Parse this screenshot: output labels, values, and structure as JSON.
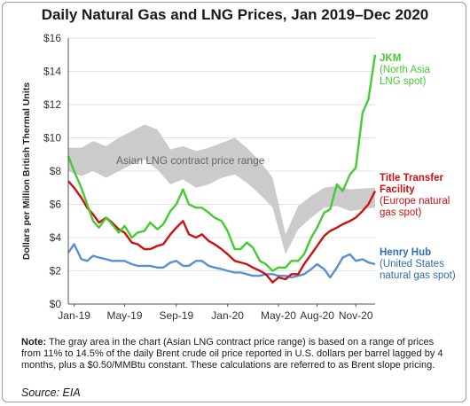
{
  "title": "Daily Natural Gas and LNG Prices, Jan 2019–Dec 2020",
  "note_label": "Note:",
  "note_text": " The gray area in the chart (Asian LNG contract price range) is based on a range of prices from 11% to 14.5% of the daily Brent crude oil price reported in U.S. dollars per barrel lagged by 4 months, plus a $0.50/MMBtu constant. These calculations are referred to as Brent slope pricing.",
  "source": "Source: EIA",
  "colors": {
    "jkm": "#44cc33",
    "ttf": "#cc1111",
    "henry_hub": "#5b8fd4",
    "asian_band": "#c8c8c8",
    "ttf_label": "#222222",
    "henry_label": "#2e6db4"
  },
  "chart_data": {
    "type": "line",
    "ylabel": "Dollars per Million British Thermal Units",
    "ylim": [
      0,
      16
    ],
    "yticks": [
      0,
      2,
      4,
      6,
      8,
      10,
      12,
      14,
      16
    ],
    "ytick_labels": [
      "$0",
      "$2",
      "$4",
      "$6",
      "$8",
      "$10",
      "$12",
      "$14",
      "$16"
    ],
    "xlim": [
      "2019-01-01",
      "2020-12-31"
    ],
    "xticks": [
      "2019-01-15",
      "2019-05-15",
      "2019-09-15",
      "2020-01-15",
      "2020-05-15",
      "2020-08-15",
      "2020-11-15"
    ],
    "xtick_labels": [
      "Jan-19",
      "May-19",
      "Sep-19",
      "Jan-20",
      "May-20",
      "Aug-20",
      "Nov-20"
    ],
    "grid": true,
    "band": {
      "name": "Asian LNG contract price range",
      "x": [
        "2019-01-01",
        "2019-02-01",
        "2019-03-01",
        "2019-04-01",
        "2019-05-01",
        "2019-06-01",
        "2019-07-01",
        "2019-08-01",
        "2019-09-01",
        "2019-10-01",
        "2019-11-01",
        "2019-12-01",
        "2020-01-01",
        "2020-02-01",
        "2020-03-01",
        "2020-04-01",
        "2020-05-01",
        "2020-06-01",
        "2020-07-01",
        "2020-08-01",
        "2020-09-01",
        "2020-10-01",
        "2020-11-01",
        "2020-12-31"
      ],
      "low": [
        8.0,
        7.7,
        8.0,
        7.6,
        8.0,
        8.4,
        8.7,
        8.1,
        7.2,
        7.5,
        7.0,
        7.2,
        7.6,
        7.8,
        7.3,
        6.6,
        5.8,
        3.0,
        4.5,
        5.2,
        5.8,
        5.9,
        5.6,
        5.8
      ],
      "high": [
        9.4,
        9.4,
        9.8,
        9.5,
        10.0,
        10.4,
        10.8,
        10.5,
        9.3,
        9.5,
        9.2,
        9.4,
        9.7,
        10.0,
        9.4,
        8.6,
        7.6,
        4.2,
        5.9,
        6.5,
        7.0,
        7.1,
        6.9,
        7.0
      ]
    },
    "series": [
      {
        "name": "JKM",
        "label_lines": [
          "JKM",
          "(North Asia",
          "LNG spot)"
        ],
        "x": [
          "2019-01-01",
          "2019-01-15",
          "2019-02-01",
          "2019-02-15",
          "2019-03-01",
          "2019-03-15",
          "2019-04-01",
          "2019-04-15",
          "2019-05-01",
          "2019-05-15",
          "2019-06-01",
          "2019-06-15",
          "2019-07-01",
          "2019-07-15",
          "2019-08-01",
          "2019-08-15",
          "2019-09-01",
          "2019-09-15",
          "2019-10-01",
          "2019-10-15",
          "2019-11-01",
          "2019-11-15",
          "2019-12-01",
          "2019-12-15",
          "2020-01-01",
          "2020-01-15",
          "2020-02-01",
          "2020-02-15",
          "2020-03-01",
          "2020-03-15",
          "2020-04-01",
          "2020-04-15",
          "2020-05-01",
          "2020-05-15",
          "2020-06-01",
          "2020-06-15",
          "2020-07-01",
          "2020-07-15",
          "2020-08-01",
          "2020-08-15",
          "2020-09-01",
          "2020-09-15",
          "2020-10-01",
          "2020-10-15",
          "2020-11-01",
          "2020-11-15",
          "2020-12-01",
          "2020-12-15",
          "2020-12-31"
        ],
        "values": [
          8.9,
          8.0,
          7.0,
          6.0,
          5.0,
          4.6,
          5.2,
          4.8,
          4.3,
          4.7,
          4.0,
          4.3,
          4.4,
          4.9,
          4.5,
          4.8,
          5.6,
          6.0,
          6.9,
          6.0,
          5.8,
          5.8,
          5.5,
          5.2,
          5.0,
          4.4,
          3.3,
          3.3,
          3.7,
          3.4,
          2.6,
          2.4,
          2.0,
          2.2,
          2.2,
          2.6,
          2.6,
          3.0,
          4.0,
          4.6,
          5.5,
          5.7,
          7.2,
          6.8,
          7.8,
          8.2,
          11.5,
          12.3,
          15.0
        ]
      },
      {
        "name": "Title Transfer Facility",
        "label_lines": [
          "Title Transfer",
          "Facility",
          "(Europe natural",
          "gas spot)"
        ],
        "x": [
          "2019-01-01",
          "2019-01-15",
          "2019-02-01",
          "2019-02-15",
          "2019-03-01",
          "2019-03-15",
          "2019-04-01",
          "2019-04-15",
          "2019-05-01",
          "2019-05-15",
          "2019-06-01",
          "2019-06-15",
          "2019-07-01",
          "2019-07-15",
          "2019-08-01",
          "2019-08-15",
          "2019-09-01",
          "2019-09-15",
          "2019-10-01",
          "2019-10-15",
          "2019-11-01",
          "2019-11-15",
          "2019-12-01",
          "2019-12-15",
          "2020-01-01",
          "2020-01-15",
          "2020-02-01",
          "2020-02-15",
          "2020-03-01",
          "2020-03-15",
          "2020-04-01",
          "2020-04-15",
          "2020-05-01",
          "2020-05-15",
          "2020-06-01",
          "2020-06-15",
          "2020-07-01",
          "2020-07-15",
          "2020-08-01",
          "2020-08-15",
          "2020-09-01",
          "2020-09-15",
          "2020-10-01",
          "2020-10-15",
          "2020-11-01",
          "2020-11-15",
          "2020-12-01",
          "2020-12-15",
          "2020-12-31"
        ],
        "values": [
          7.4,
          7.0,
          6.4,
          5.8,
          5.4,
          4.9,
          5.2,
          4.9,
          4.5,
          4.3,
          3.7,
          3.6,
          3.3,
          3.3,
          3.5,
          3.6,
          4.2,
          4.6,
          5.0,
          4.2,
          4.0,
          4.2,
          3.8,
          3.6,
          3.3,
          3.0,
          2.6,
          2.5,
          2.4,
          2.2,
          2.0,
          1.8,
          1.3,
          1.6,
          1.5,
          1.8,
          1.8,
          2.4,
          3.0,
          3.5,
          4.1,
          4.4,
          4.6,
          4.8,
          5.0,
          5.2,
          5.6,
          6.0,
          6.8
        ]
      },
      {
        "name": "Henry Hub",
        "label_lines": [
          "Henry Hub",
          "(United States",
          "natural gas spot)"
        ],
        "x": [
          "2019-01-01",
          "2019-01-15",
          "2019-02-01",
          "2019-02-15",
          "2019-03-01",
          "2019-03-15",
          "2019-04-01",
          "2019-04-15",
          "2019-05-01",
          "2019-05-15",
          "2019-06-01",
          "2019-06-15",
          "2019-07-01",
          "2019-07-15",
          "2019-08-01",
          "2019-08-15",
          "2019-09-01",
          "2019-09-15",
          "2019-10-01",
          "2019-10-15",
          "2019-11-01",
          "2019-11-15",
          "2019-12-01",
          "2019-12-15",
          "2020-01-01",
          "2020-01-15",
          "2020-02-01",
          "2020-02-15",
          "2020-03-01",
          "2020-03-15",
          "2020-04-01",
          "2020-04-15",
          "2020-05-01",
          "2020-05-15",
          "2020-06-01",
          "2020-06-15",
          "2020-07-01",
          "2020-07-15",
          "2020-08-01",
          "2020-08-15",
          "2020-09-01",
          "2020-09-15",
          "2020-10-01",
          "2020-10-15",
          "2020-11-01",
          "2020-11-15",
          "2020-12-01",
          "2020-12-15",
          "2020-12-31"
        ],
        "values": [
          3.1,
          3.6,
          2.7,
          2.6,
          2.9,
          2.8,
          2.7,
          2.6,
          2.6,
          2.6,
          2.4,
          2.3,
          2.3,
          2.3,
          2.2,
          2.2,
          2.5,
          2.6,
          2.3,
          2.3,
          2.6,
          2.6,
          2.3,
          2.2,
          2.1,
          2.0,
          1.9,
          1.9,
          1.8,
          1.7,
          1.7,
          1.8,
          1.8,
          1.7,
          1.7,
          1.6,
          1.7,
          1.8,
          2.1,
          2.4,
          2.1,
          1.6,
          2.2,
          2.8,
          3.0,
          2.6,
          2.7,
          2.5,
          2.4
        ]
      }
    ]
  }
}
